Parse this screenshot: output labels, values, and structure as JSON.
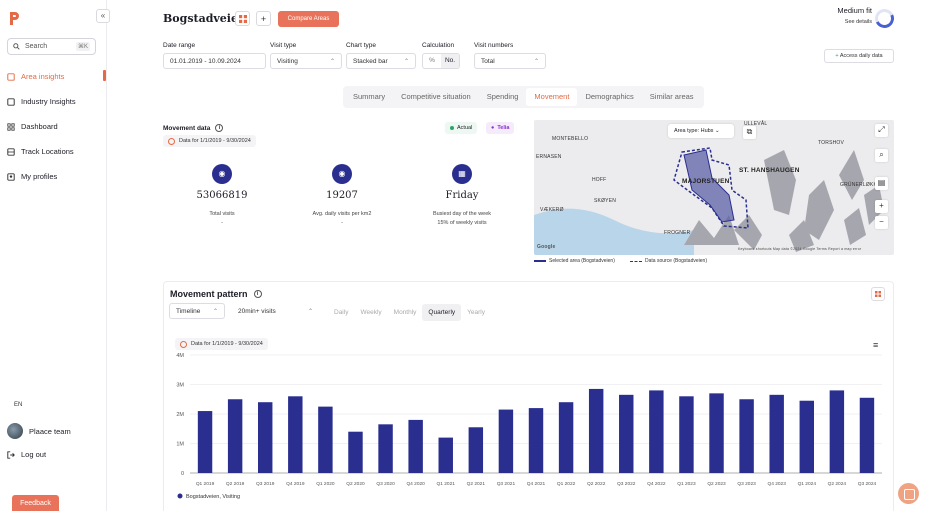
{
  "app": {
    "title": "Bogstadveien",
    "brand_color": "#e46a45"
  },
  "sidebar": {
    "collapse_label": "«",
    "search": {
      "label": "Search",
      "shortcut": "⌘K"
    },
    "items": [
      {
        "label": "Area insights",
        "icon": "map-pin-icon",
        "active": true
      },
      {
        "label": "Industry Insights",
        "icon": "buildings-icon",
        "active": false
      },
      {
        "label": "Dashboard",
        "icon": "dashboard-icon",
        "active": false
      },
      {
        "label": "Track Locations",
        "icon": "track-icon",
        "active": false
      },
      {
        "label": "My profiles",
        "icon": "profile-icon",
        "active": false
      }
    ],
    "language": "EN",
    "team": "Plaace team",
    "logout": "Log out",
    "feedback": "Feedback"
  },
  "header": {
    "title": "Bogstadveien",
    "compare_label": "Compare Areas",
    "fit": {
      "label": "Medium fit",
      "link": "See details"
    }
  },
  "filters": {
    "date_range": {
      "label": "Date range",
      "value": "01.01.2019 - 10.09.2024"
    },
    "visit_type": {
      "label": "Visit type",
      "value": "Visiting"
    },
    "chart_type": {
      "label": "Chart type",
      "value": "Stacked bar"
    },
    "calculation": {
      "label": "Calculation",
      "options": [
        "%",
        "No."
      ],
      "selected": "No."
    },
    "visit_numbers": {
      "label": "Visit numbers",
      "value": "Total"
    },
    "access_label": "Access daily data"
  },
  "tabs": [
    "Summary",
    "Competitive situation",
    "Spending",
    "Movement",
    "Demographics",
    "Similar areas"
  ],
  "active_tab": "Movement",
  "movement_data": {
    "title": "Movement data",
    "date_label": "Data for 1/1/2019 - 9/30/2024",
    "actual_label": "Actual",
    "telia_label": "Telia",
    "stats": [
      {
        "value": "53066819",
        "label": "Total visits",
        "sub": "-"
      },
      {
        "value": "19207",
        "label": "Avg. daily visits per km2",
        "sub": "-"
      },
      {
        "value": "Friday",
        "label": "Busiest day of the week",
        "sub": "15% of weekly visits"
      }
    ]
  },
  "map": {
    "area_type": "Area type: Hubs",
    "places": [
      "MONTEBELLO",
      "ERNASEN",
      "HOFF",
      "VÆKERØ",
      "SKØYEN",
      "FROGNER",
      "MAJORSTUEN",
      "ST. HANSHAUGEN",
      "TORSHOV",
      "GRÜNERLØKKA",
      "ULLEVÅL"
    ],
    "legend_selected": "Selected area (Bogstadveien)",
    "legend_source": "Data source (Bogstadveien)",
    "attribution": "Keyboard shortcuts  Map data ©2024 Google  Terms  Report a map error"
  },
  "movement_pattern": {
    "title": "Movement pattern",
    "view": "Timeline",
    "duration": "20min+ visits",
    "periods": [
      "Daily",
      "Weekly",
      "Monthly",
      "Quarterly",
      "Yearly"
    ],
    "active_period": "Quarterly",
    "date_label": "Data for 1/1/2019 - 9/30/2024"
  },
  "chart_data": {
    "type": "bar",
    "categories": [
      "Q1 2019",
      "Q2 2019",
      "Q3 2019",
      "Q4 2019",
      "Q1 2020",
      "Q2 2020",
      "Q3 2020",
      "Q4 2020",
      "Q1 2021",
      "Q2 2021",
      "Q3 2021",
      "Q4 2021",
      "Q1 2022",
      "Q2 2022",
      "Q3 2022",
      "Q4 2022",
      "Q1 2023",
      "Q2 2023",
      "Q3 2023",
      "Q4 2023",
      "Q1 2024",
      "Q2 2024",
      "Q3 2024"
    ],
    "series": [
      {
        "name": "Bogstadveien, Visiting",
        "color": "#2a2f8f",
        "values": [
          2.1,
          2.5,
          2.4,
          2.6,
          2.25,
          1.4,
          1.65,
          1.8,
          1.2,
          1.55,
          2.15,
          2.2,
          2.4,
          2.85,
          2.65,
          2.8,
          2.6,
          2.7,
          2.5,
          2.65,
          2.45,
          2.8,
          2.55
        ]
      }
    ],
    "yticks": [
      "0",
      "1M",
      "2M",
      "3M",
      "4M"
    ],
    "ylim": [
      0,
      4
    ],
    "grid": true,
    "legend_position": "bottom-left"
  }
}
